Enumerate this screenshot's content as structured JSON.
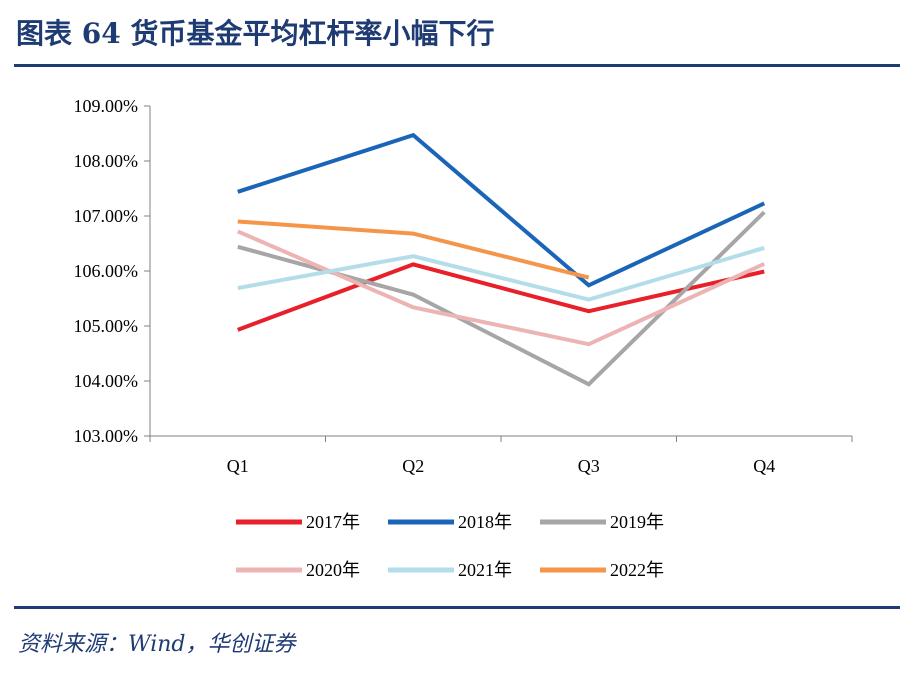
{
  "header": {
    "title": "图表 64  货币基金平均杠杆率小幅下行"
  },
  "footer": {
    "source": "资料来源：Wind，华创证券"
  },
  "chart_data": {
    "type": "line",
    "title": "",
    "xlabel": "",
    "ylabel": "",
    "categories": [
      "Q1",
      "Q2",
      "Q3",
      "Q4"
    ],
    "ylim": [
      103.0,
      109.0
    ],
    "yticks": [
      103.0,
      104.0,
      105.0,
      106.0,
      107.0,
      108.0,
      109.0
    ],
    "ytick_labels": [
      "103.00%",
      "104.00%",
      "105.00%",
      "106.00%",
      "107.00%",
      "108.00%",
      "109.00%"
    ],
    "grid": false,
    "legend_position": "bottom",
    "series": [
      {
        "name": "2017年",
        "color": "#e8202a",
        "values": [
          104.93,
          106.12,
          105.27,
          105.99
        ]
      },
      {
        "name": "2018年",
        "color": "#1b65b8",
        "values": [
          107.44,
          108.47,
          105.74,
          107.23
        ]
      },
      {
        "name": "2019年",
        "color": "#a6a6a6",
        "values": [
          106.44,
          105.57,
          103.94,
          107.07
        ]
      },
      {
        "name": "2020年",
        "color": "#edb4b4",
        "values": [
          106.72,
          105.34,
          104.67,
          106.13
        ]
      },
      {
        "name": "2021年",
        "color": "#b3dde9",
        "values": [
          105.69,
          106.27,
          105.48,
          106.42
        ]
      },
      {
        "name": "2022年",
        "color": "#f4954a",
        "values": [
          106.9,
          106.68,
          105.88,
          null
        ]
      }
    ]
  }
}
